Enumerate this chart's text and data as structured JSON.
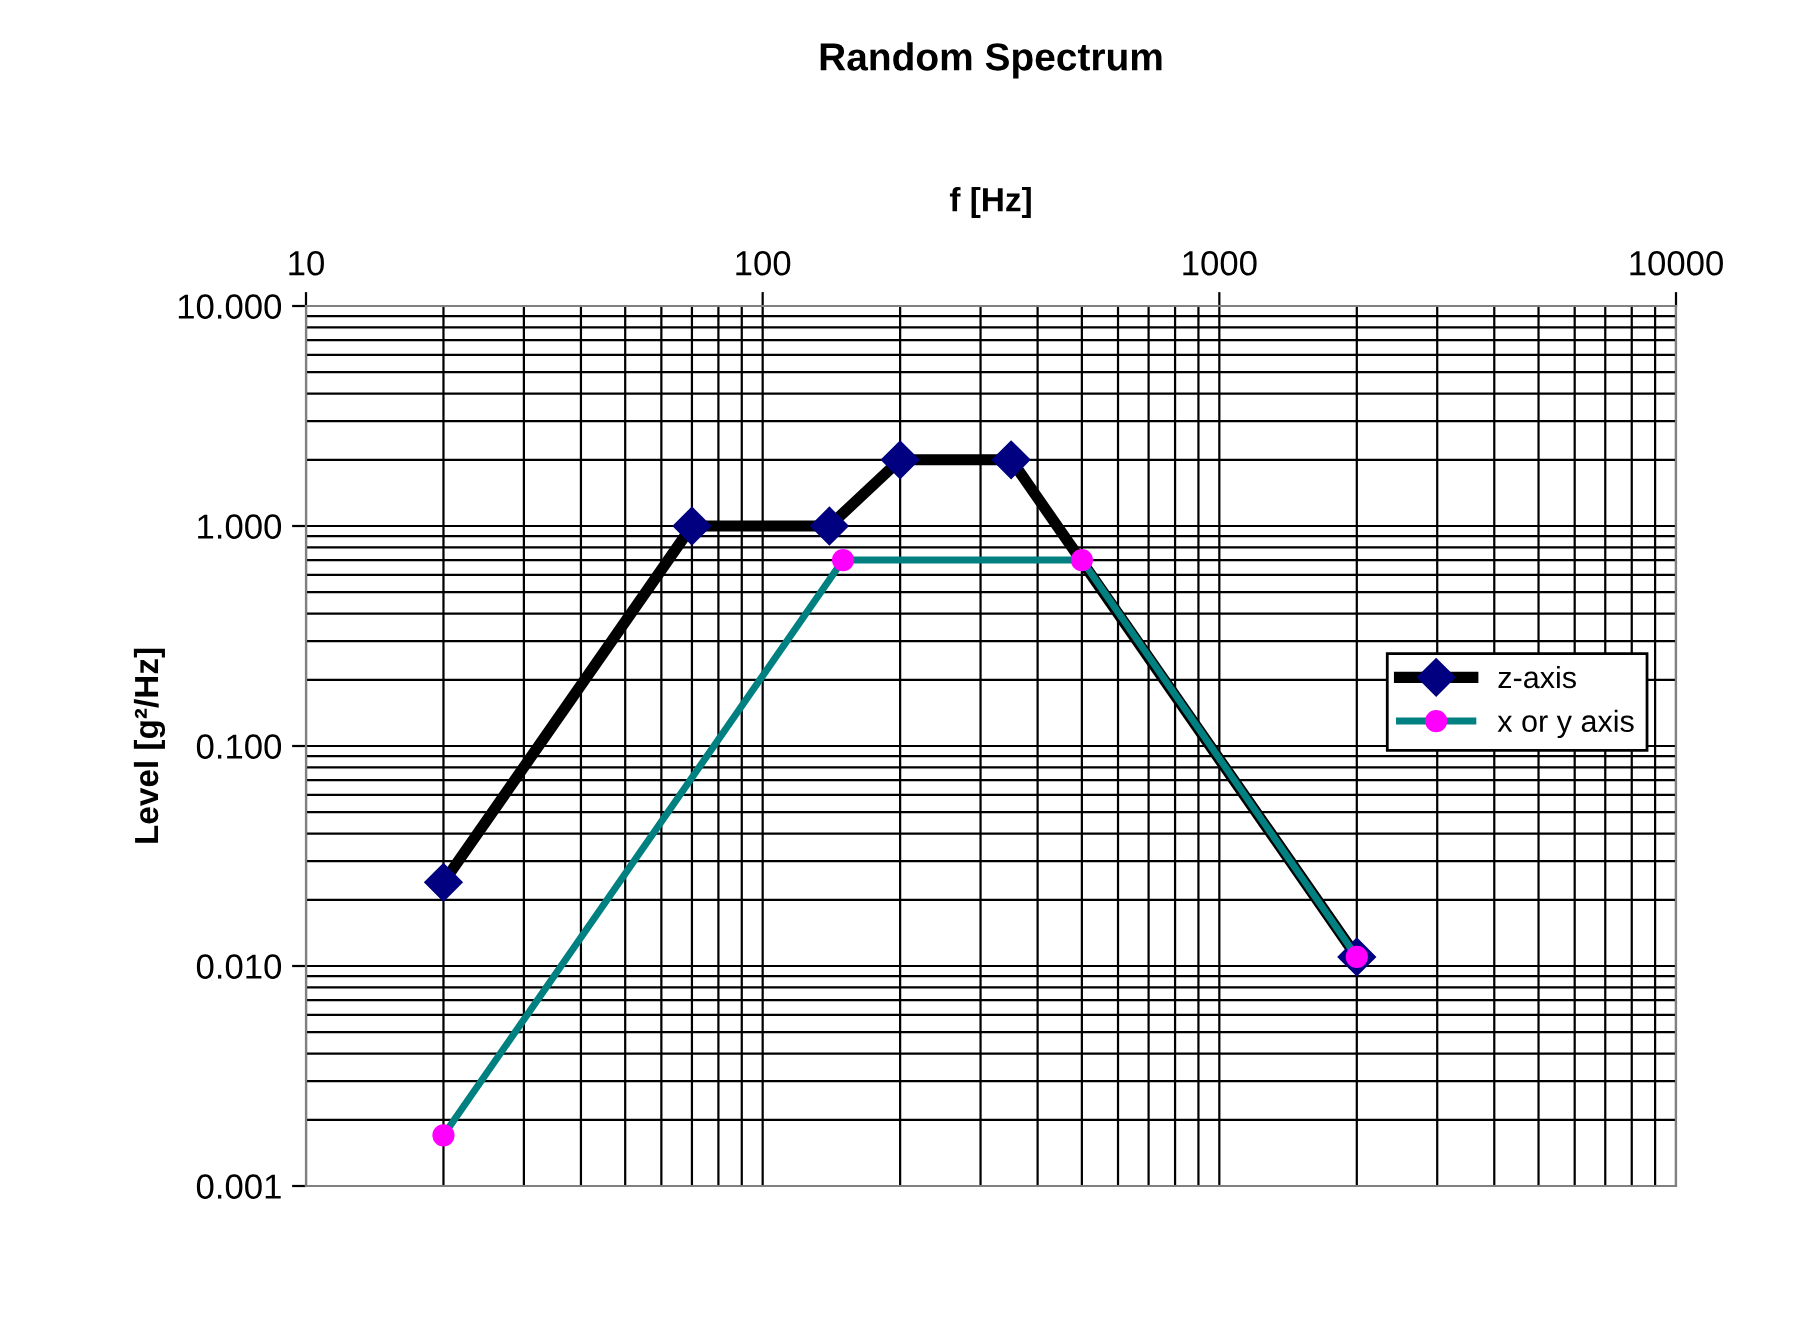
{
  "chart_data": {
    "type": "line",
    "title": "Random Spectrum",
    "xlabel": "f [Hz]",
    "ylabel": "Level [g²/Hz]",
    "log": "xy",
    "grid": true,
    "legend": "right",
    "xlim": [
      10,
      10000
    ],
    "xticks": [
      10,
      100,
      1000,
      10000
    ],
    "ylim": [
      0.001,
      10
    ],
    "yticks": [
      {
        "value": 0.001,
        "label": "0.001"
      },
      {
        "value": 0.01,
        "label": "0.010"
      },
      {
        "value": 0.1,
        "label": "0.100"
      },
      {
        "value": 1,
        "label": "1.000"
      },
      {
        "value": 10,
        "label": "10.000"
      }
    ],
    "series": [
      {
        "name": "z-axis",
        "color": "#000000",
        "colors": [
          "#000080",
          "#000080",
          "#000080",
          "#000080",
          "#000080",
          "#000080"
        ],
        "marker": "diamond",
        "x": [
          20,
          70,
          140,
          200,
          350,
          2000
        ],
        "values": [
          0.024,
          1,
          1,
          2,
          2,
          0.011
        ]
      },
      {
        "name": "x or y axis",
        "color": "#008080",
        "colors": [
          "#ff00ff",
          "#ff00ff",
          "#ff00ff",
          "#ff00ff"
        ],
        "marker": "circle",
        "x": [
          20,
          150,
          500,
          2000
        ],
        "values": [
          0.0017,
          0.7,
          0.7,
          0.011
        ]
      }
    ]
  }
}
